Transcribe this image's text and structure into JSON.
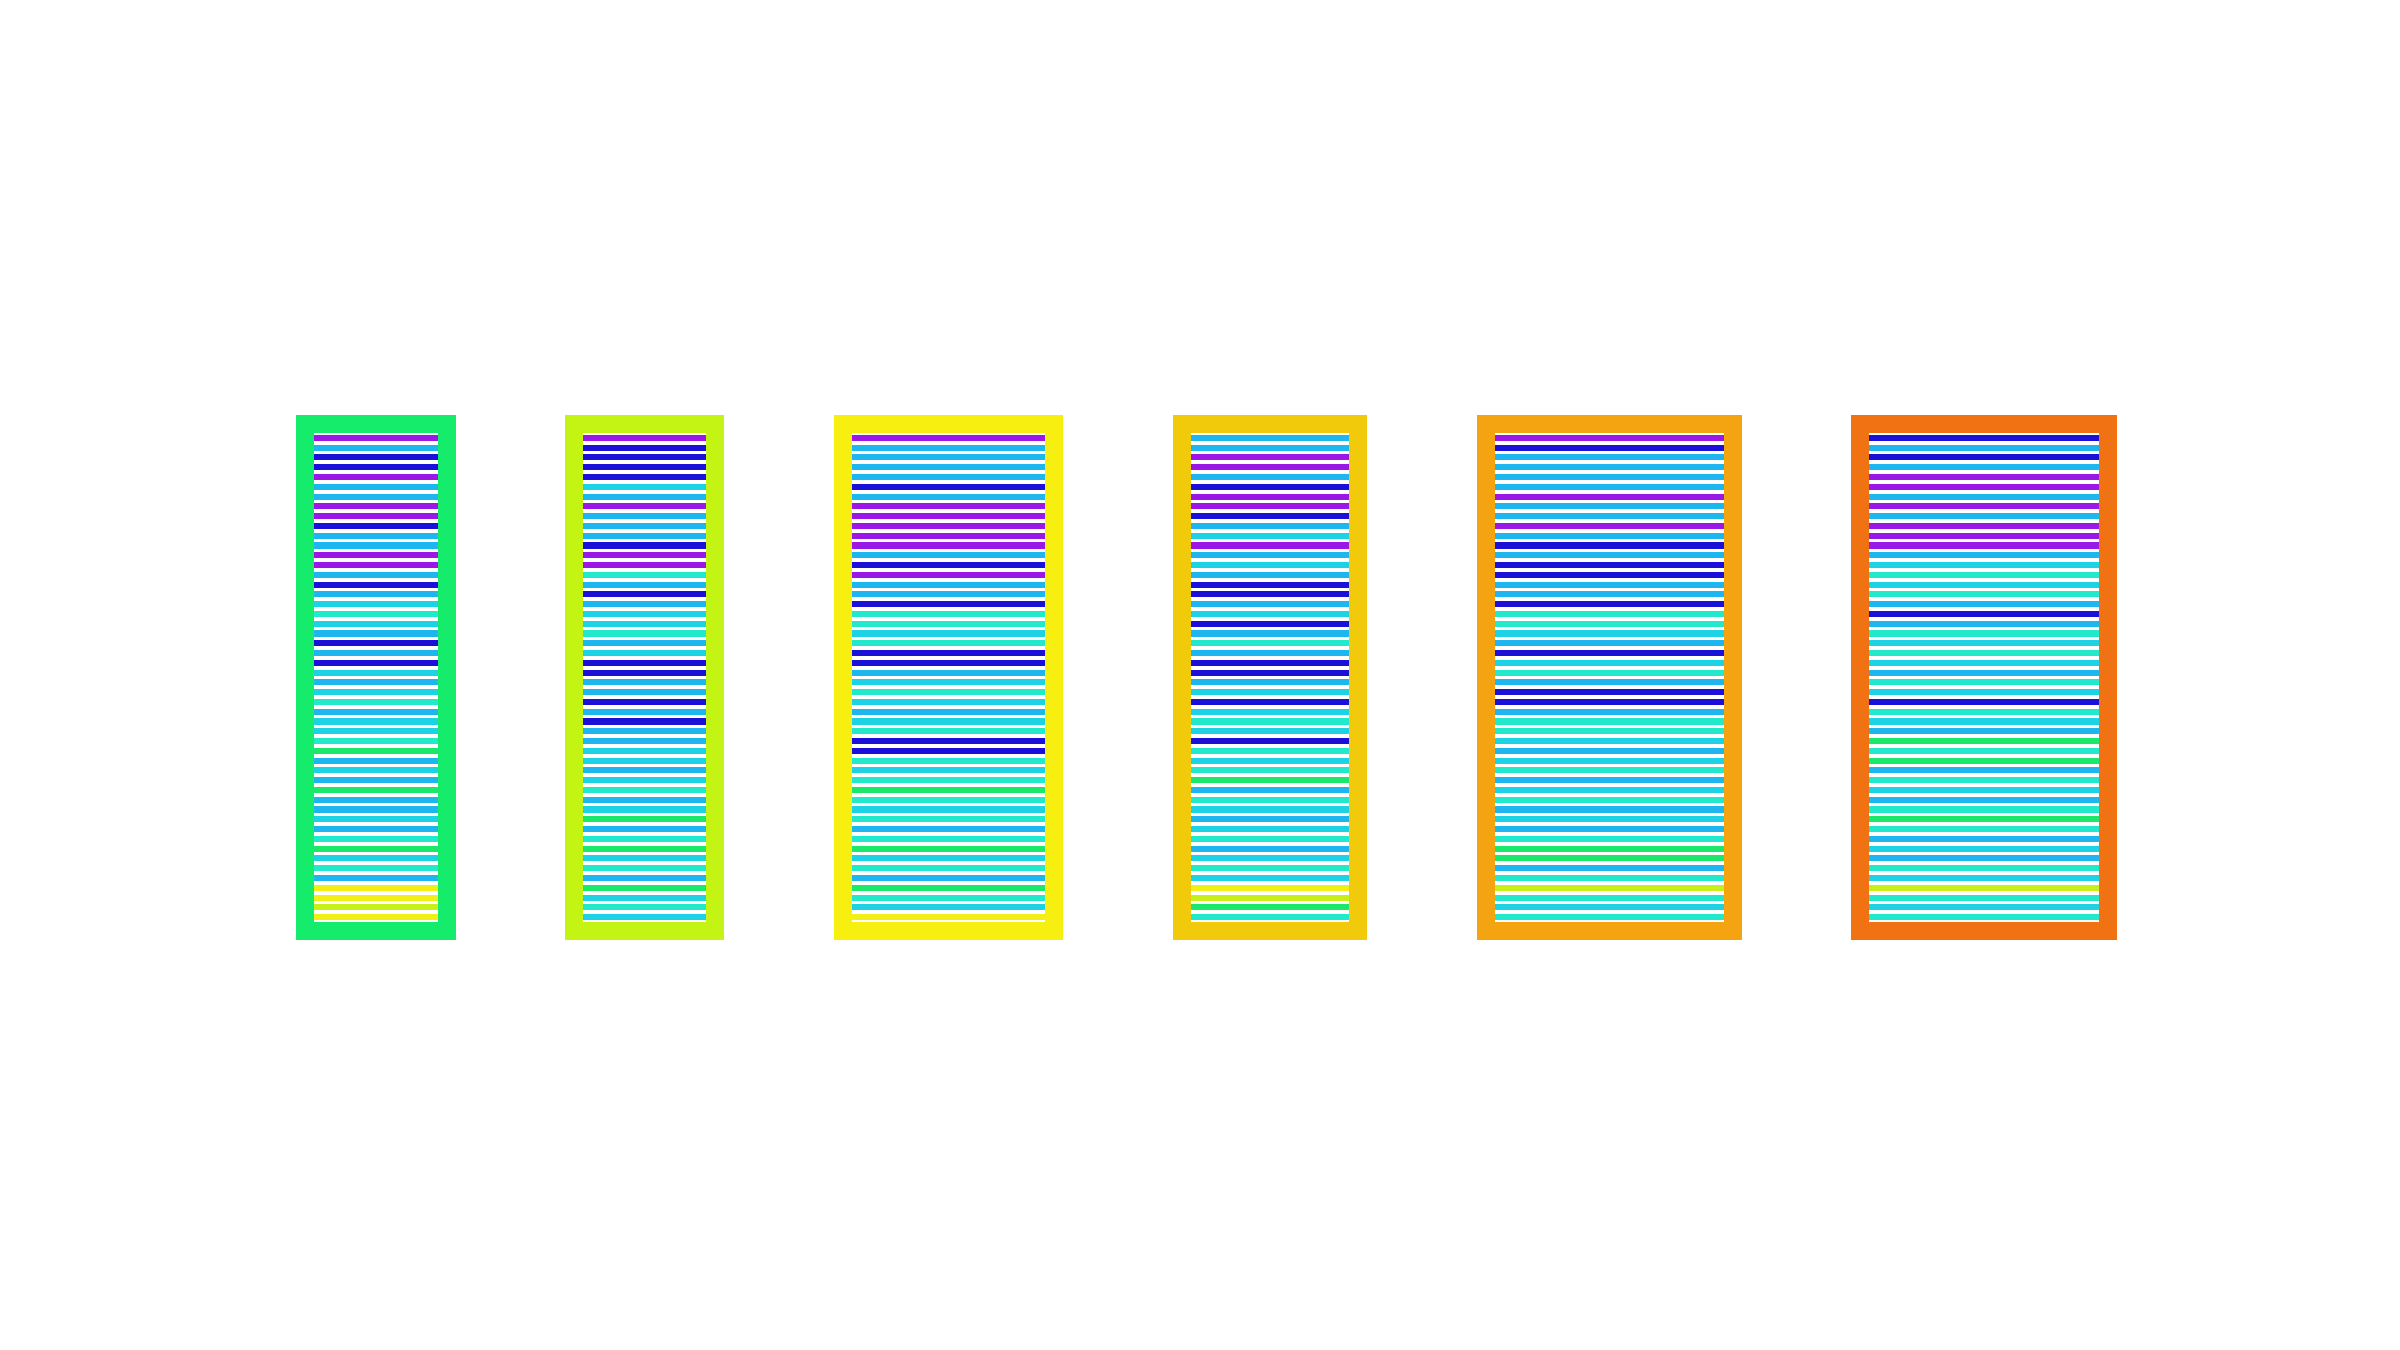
{
  "palette": {
    "violet": "#9b17e6",
    "blue": "#1b10d8",
    "sky": "#1eb6ee",
    "cyan": "#1ed2e6",
    "aqua": "#22e8cc",
    "green": "#1be86a",
    "chartreuse": "#c8f018",
    "yellow": "#f2ef16"
  },
  "panels": [
    {
      "border_color": "#15ec6c",
      "stripes": [
        "violet",
        "sky",
        "blue",
        "blue",
        "violet",
        "sky",
        "sky",
        "violet",
        "violet",
        "blue",
        "sky",
        "sky",
        "violet",
        "violet",
        "sky",
        "blue",
        "sky",
        "cyan",
        "aqua",
        "cyan",
        "sky",
        "blue",
        "sky",
        "blue",
        "cyan",
        "sky",
        "cyan",
        "aqua",
        "sky",
        "cyan",
        "cyan",
        "aqua",
        "green",
        "sky",
        "cyan",
        "sky",
        "green",
        "sky",
        "sky",
        "cyan",
        "sky",
        "aqua",
        "green",
        "cyan",
        "aqua",
        "sky",
        "yellow",
        "yellow",
        "chartreuse",
        "yellow"
      ]
    },
    {
      "border_color": "#c3f414",
      "stripes": [
        "violet",
        "blue",
        "blue",
        "blue",
        "blue",
        "cyan",
        "sky",
        "violet",
        "sky",
        "sky",
        "sky",
        "blue",
        "violet",
        "violet",
        "aqua",
        "sky",
        "blue",
        "sky",
        "cyan",
        "cyan",
        "aqua",
        "sky",
        "cyan",
        "blue",
        "blue",
        "sky",
        "sky",
        "blue",
        "sky",
        "blue",
        "sky",
        "sky",
        "cyan",
        "cyan",
        "sky",
        "cyan",
        "aqua",
        "sky",
        "cyan",
        "green",
        "sky",
        "aqua",
        "green",
        "cyan",
        "aqua",
        "sky",
        "green",
        "cyan",
        "aqua",
        "cyan"
      ]
    },
    {
      "border_color": "#f6ef10",
      "stripes": [
        "violet",
        "sky",
        "sky",
        "sky",
        "sky",
        "blue",
        "sky",
        "violet",
        "violet",
        "violet",
        "violet",
        "violet",
        "sky",
        "blue",
        "violet",
        "sky",
        "sky",
        "blue",
        "aqua",
        "aqua",
        "cyan",
        "aqua",
        "blue",
        "blue",
        "sky",
        "cyan",
        "aqua",
        "cyan",
        "sky",
        "cyan",
        "aqua",
        "blue",
        "blue",
        "aqua",
        "cyan",
        "aqua",
        "green",
        "aqua",
        "cyan",
        "aqua",
        "sky",
        "aqua",
        "green",
        "cyan",
        "aqua",
        "sky",
        "green",
        "aqua",
        "cyan",
        "yellow"
      ]
    },
    {
      "border_color": "#f2ca0c",
      "stripes": [
        "sky",
        "sky",
        "violet",
        "violet",
        "sky",
        "blue",
        "violet",
        "violet",
        "blue",
        "sky",
        "cyan",
        "violet",
        "sky",
        "cyan",
        "sky",
        "blue",
        "blue",
        "sky",
        "cyan",
        "blue",
        "sky",
        "aqua",
        "sky",
        "blue",
        "blue",
        "sky",
        "cyan",
        "blue",
        "cyan",
        "aqua",
        "cyan",
        "blue",
        "aqua",
        "cyan",
        "aqua",
        "green",
        "sky",
        "aqua",
        "cyan",
        "sky",
        "cyan",
        "aqua",
        "sky",
        "cyan",
        "aqua",
        "cyan",
        "yellow",
        "chartreuse",
        "green",
        "aqua"
      ]
    },
    {
      "border_color": "#f3a410",
      "stripes": [
        "violet",
        "blue",
        "sky",
        "sky",
        "sky",
        "sky",
        "violet",
        "sky",
        "sky",
        "violet",
        "sky",
        "blue",
        "sky",
        "blue",
        "blue",
        "sky",
        "sky",
        "blue",
        "aqua",
        "aqua",
        "cyan",
        "sky",
        "blue",
        "cyan",
        "aqua",
        "sky",
        "blue",
        "blue",
        "sky",
        "aqua",
        "aqua",
        "cyan",
        "sky",
        "cyan",
        "aqua",
        "sky",
        "cyan",
        "aqua",
        "sky",
        "cyan",
        "sky",
        "aqua",
        "green",
        "green",
        "sky",
        "aqua",
        "chartreuse",
        "aqua",
        "cyan",
        "aqua"
      ]
    },
    {
      "border_color": "#f07212",
      "stripes": [
        "blue",
        "sky",
        "blue",
        "sky",
        "violet",
        "violet",
        "sky",
        "violet",
        "sky",
        "violet",
        "violet",
        "violet",
        "sky",
        "cyan",
        "aqua",
        "cyan",
        "aqua",
        "sky",
        "blue",
        "sky",
        "aqua",
        "cyan",
        "aqua",
        "cyan",
        "sky",
        "aqua",
        "cyan",
        "blue",
        "aqua",
        "cyan",
        "sky",
        "green",
        "aqua",
        "green",
        "sky",
        "aqua",
        "cyan",
        "sky",
        "aqua",
        "green",
        "aqua",
        "sky",
        "cyan",
        "sky",
        "aqua",
        "cyan",
        "chartreuse",
        "aqua",
        "cyan",
        "aqua"
      ]
    }
  ]
}
